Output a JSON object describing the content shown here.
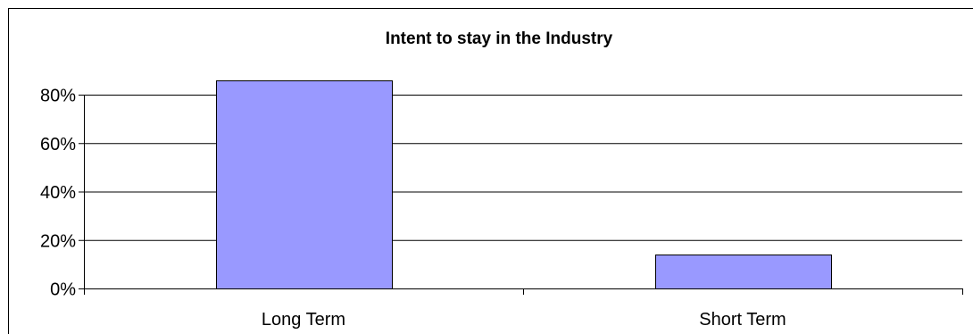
{
  "chart_data": {
    "type": "bar",
    "title": "Intent to stay in the Industry",
    "xlabel": "",
    "ylabel": "",
    "categories": [
      "Long Term",
      "Short Term"
    ],
    "values": [
      0.86,
      0.14
    ],
    "ylim": [
      0,
      0.8
    ],
    "y_ticks": [
      0,
      0.2,
      0.4,
      0.6,
      0.8
    ],
    "y_tick_labels": [
      "0%",
      "20%",
      "40%",
      "60%",
      "80%"
    ],
    "grid": true,
    "legend": "none",
    "bar_color": "#9999ff",
    "bar_edge_color": "#000000",
    "grid_color": "#000000"
  }
}
